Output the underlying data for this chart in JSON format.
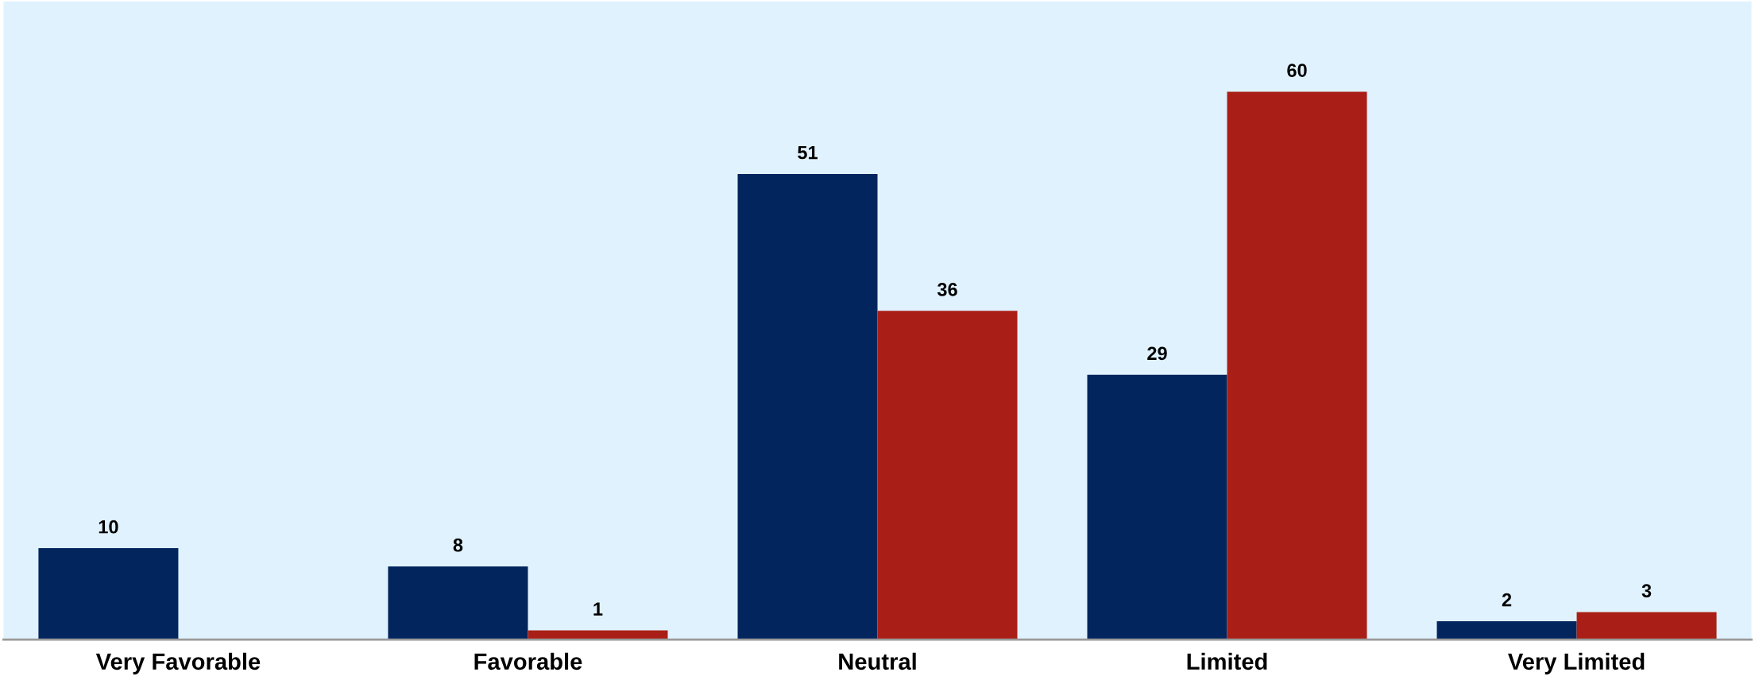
{
  "chart_data": {
    "type": "bar",
    "categories": [
      "Very Favorable",
      "Favorable",
      "Neutral",
      "Limited",
      "Very Limited"
    ],
    "series": [
      {
        "color": "#02255e",
        "values": [
          10,
          8,
          51,
          29,
          2
        ]
      },
      {
        "color": "#a91f17",
        "values": [
          null,
          1,
          36,
          60,
          3
        ]
      }
    ],
    "data_labels": true,
    "tick_labels": "x"
  }
}
